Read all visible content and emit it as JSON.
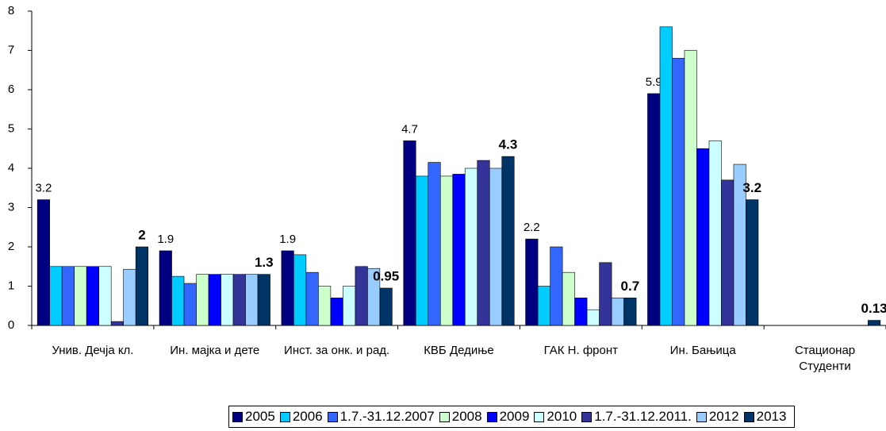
{
  "chart_data": {
    "type": "bar",
    "categories": [
      "Унив. Дечја кл.",
      "Ин. мајка и дете",
      "Инст. за онк. и рад.",
      "КВБ Дедиње",
      "ГАК Н. фронт",
      "Ин.  Бањица",
      "Стационар Студенти"
    ],
    "series": [
      {
        "name": "2005",
        "color": "#000080",
        "show_labels": true,
        "label_bold": false,
        "values": [
          3.2,
          1.9,
          1.9,
          4.7,
          2.2,
          5.9,
          null
        ]
      },
      {
        "name": "2006",
        "color": "#00ccff",
        "values": [
          1.5,
          1.25,
          1.8,
          3.8,
          1.0,
          7.6,
          null
        ]
      },
      {
        "name": "1.7.-31.12.2007",
        "color": "#3366ff",
        "values": [
          1.5,
          1.07,
          1.35,
          4.15,
          2.0,
          6.8,
          null
        ]
      },
      {
        "name": "2008",
        "color": "#ccffcc",
        "values": [
          1.5,
          1.3,
          1.0,
          3.8,
          1.35,
          7.0,
          null
        ]
      },
      {
        "name": "2009",
        "color": "#0000ff",
        "values": [
          1.5,
          1.3,
          0.7,
          3.85,
          0.7,
          4.5,
          null
        ]
      },
      {
        "name": "2010",
        "color": "#ccffff",
        "values": [
          1.5,
          1.3,
          1.0,
          4.0,
          0.4,
          4.7,
          null
        ]
      },
      {
        "name": "1.7.-31.12.2011.",
        "color": "#333399",
        "values": [
          0.1,
          1.3,
          1.5,
          4.2,
          1.6,
          3.7,
          null
        ]
      },
      {
        "name": "2012",
        "color": "#99ccff",
        "values": [
          1.43,
          1.3,
          1.45,
          4.0,
          0.7,
          4.1,
          null
        ]
      },
      {
        "name": "2013",
        "color": "#003366",
        "show_labels": true,
        "label_bold": true,
        "values": [
          2,
          1.3,
          0.95,
          4.3,
          0.7,
          3.2,
          0.13
        ]
      }
    ],
    "ylim": [
      0,
      8
    ],
    "yticks": [
      0,
      1,
      2,
      3,
      4,
      5,
      6,
      7,
      8
    ],
    "grid": false,
    "legend": "bottom"
  }
}
